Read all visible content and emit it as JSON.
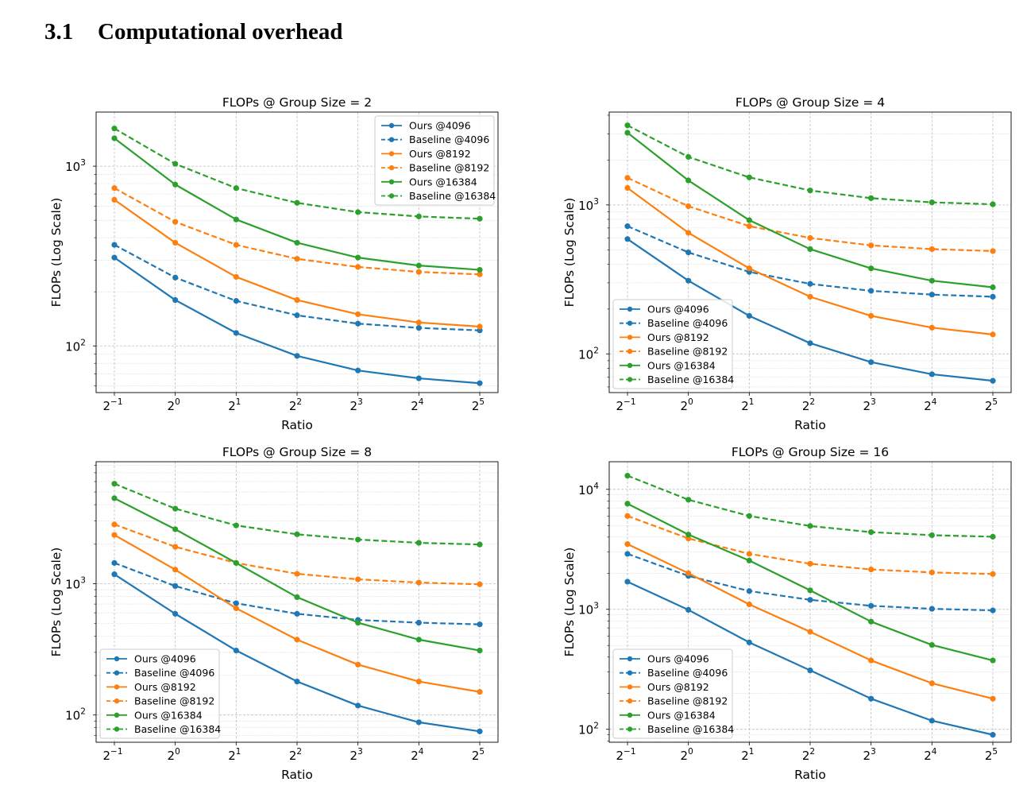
{
  "section": {
    "number": "3.1",
    "title": "Computational overhead"
  },
  "colors": {
    "blue": "#1f77b4",
    "orange": "#ff7f0e",
    "green": "#2ca02c",
    "grid": "#b0b0b0"
  },
  "chart_data": [
    {
      "type": "line",
      "title": "FLOPs @ Group Size = 2",
      "xlabel": "Ratio",
      "ylabel": "FLOPs (Log Scale)",
      "x": [
        0.5,
        1,
        2,
        4,
        8,
        16,
        32
      ],
      "xtick_labels": [
        [
          "2",
          "−1"
        ],
        [
          "2",
          "0"
        ],
        [
          "2",
          "1"
        ],
        [
          "2",
          "2"
        ],
        [
          "2",
          "3"
        ],
        [
          "2",
          "4"
        ],
        [
          "2",
          "5"
        ]
      ],
      "xscale": "log2",
      "yscale": "log",
      "ylim": [
        55,
        2000
      ],
      "ytick_labels": [
        [
          "10",
          "2",
          100
        ],
        [
          "10",
          "3",
          1000
        ]
      ],
      "grid": true,
      "legend_position": "upper right",
      "series": [
        {
          "name": "Ours @4096",
          "color": "blue",
          "style": "solid",
          "values": [
            310,
            180,
            118,
            88,
            73,
            66,
            62
          ]
        },
        {
          "name": "Baseline @4096",
          "color": "blue",
          "style": "dashed",
          "values": [
            365,
            240,
            178,
            148,
            133,
            126,
            122
          ]
        },
        {
          "name": "Ours @8192",
          "color": "orange",
          "style": "solid",
          "values": [
            650,
            375,
            242,
            180,
            150,
            135,
            128
          ]
        },
        {
          "name": "Baseline @8192",
          "color": "orange",
          "style": "dashed",
          "values": [
            755,
            490,
            365,
            305,
            275,
            258,
            250
          ]
        },
        {
          "name": "Ours @16384",
          "color": "green",
          "style": "solid",
          "values": [
            1430,
            790,
            505,
            375,
            310,
            280,
            265
          ]
        },
        {
          "name": "Baseline @16384",
          "color": "green",
          "style": "dashed",
          "values": [
            1620,
            1030,
            755,
            625,
            555,
            525,
            510
          ]
        }
      ]
    },
    {
      "type": "line",
      "title": "FLOPs @ Group Size = 4",
      "xlabel": "Ratio",
      "ylabel": "FLOPs (Log Scale)",
      "x": [
        0.5,
        1,
        2,
        4,
        8,
        16,
        32
      ],
      "xtick_labels": [
        [
          "2",
          "−1"
        ],
        [
          "2",
          "0"
        ],
        [
          "2",
          "1"
        ],
        [
          "2",
          "2"
        ],
        [
          "2",
          "3"
        ],
        [
          "2",
          "4"
        ],
        [
          "2",
          "5"
        ]
      ],
      "xscale": "log2",
      "yscale": "log",
      "ylim": [
        55,
        4200
      ],
      "ytick_labels": [
        [
          "10",
          "2",
          100
        ],
        [
          "10",
          "3",
          1000
        ]
      ],
      "grid": true,
      "legend_position": "lower left",
      "series": [
        {
          "name": "Ours @4096",
          "color": "blue",
          "style": "solid",
          "values": [
            590,
            310,
            180,
            118,
            88,
            73,
            66
          ]
        },
        {
          "name": "Baseline @4096",
          "color": "blue",
          "style": "dashed",
          "values": [
            720,
            480,
            355,
            295,
            265,
            250,
            242
          ]
        },
        {
          "name": "Ours @8192",
          "color": "orange",
          "style": "solid",
          "values": [
            1300,
            650,
            375,
            242,
            180,
            150,
            135
          ]
        },
        {
          "name": "Baseline @8192",
          "color": "orange",
          "style": "dashed",
          "values": [
            1520,
            980,
            720,
            600,
            535,
            505,
            490
          ]
        },
        {
          "name": "Ours @16384",
          "color": "green",
          "style": "solid",
          "values": [
            3050,
            1460,
            790,
            505,
            375,
            310,
            280
          ]
        },
        {
          "name": "Baseline @16384",
          "color": "green",
          "style": "dashed",
          "values": [
            3420,
            2100,
            1530,
            1250,
            1110,
            1040,
            1010
          ]
        }
      ]
    },
    {
      "type": "line",
      "title": "FLOPs @ Group Size = 8",
      "xlabel": "Ratio",
      "ylabel": "FLOPs (Log Scale)",
      "x": [
        0.5,
        1,
        2,
        4,
        8,
        16,
        32
      ],
      "xtick_labels": [
        [
          "2",
          "−1"
        ],
        [
          "2",
          "0"
        ],
        [
          "2",
          "1"
        ],
        [
          "2",
          "2"
        ],
        [
          "2",
          "3"
        ],
        [
          "2",
          "4"
        ],
        [
          "2",
          "5"
        ]
      ],
      "xscale": "log2",
      "yscale": "log",
      "ylim": [
        62,
        8500
      ],
      "ytick_labels": [
        [
          "10",
          "2",
          100
        ],
        [
          "10",
          "3",
          1000
        ]
      ],
      "grid": true,
      "legend_position": "lower left",
      "series": [
        {
          "name": "Ours @4096",
          "color": "blue",
          "style": "solid",
          "values": [
            1180,
            590,
            310,
            180,
            118,
            88,
            75
          ]
        },
        {
          "name": "Baseline @4096",
          "color": "blue",
          "style": "dashed",
          "values": [
            1440,
            960,
            710,
            590,
            530,
            505,
            490
          ]
        },
        {
          "name": "Ours @8192",
          "color": "orange",
          "style": "solid",
          "values": [
            2350,
            1280,
            650,
            375,
            242,
            180,
            150
          ]
        },
        {
          "name": "Baseline @8192",
          "color": "orange",
          "style": "dashed",
          "values": [
            2830,
            1910,
            1440,
            1190,
            1080,
            1020,
            990
          ]
        },
        {
          "name": "Ours @16384",
          "color": "green",
          "style": "solid",
          "values": [
            4480,
            2600,
            1440,
            790,
            505,
            375,
            310
          ]
        },
        {
          "name": "Baseline @16384",
          "color": "green",
          "style": "dashed",
          "values": [
            5780,
            3730,
            2780,
            2380,
            2170,
            2050,
            1990
          ]
        }
      ]
    },
    {
      "type": "line",
      "title": "FLOPs @ Group Size = 16",
      "xlabel": "Ratio",
      "ylabel": "FLOPs (Log Scale)",
      "x": [
        0.5,
        1,
        2,
        4,
        8,
        16,
        32
      ],
      "xtick_labels": [
        [
          "2",
          "−1"
        ],
        [
          "2",
          "0"
        ],
        [
          "2",
          "1"
        ],
        [
          "2",
          "2"
        ],
        [
          "2",
          "3"
        ],
        [
          "2",
          "4"
        ],
        [
          "2",
          "5"
        ]
      ],
      "xscale": "log2",
      "yscale": "log",
      "ylim": [
        78,
        17000
      ],
      "ytick_labels": [
        [
          "10",
          "2",
          100
        ],
        [
          "10",
          "3",
          1000
        ],
        [
          "10",
          "4",
          10000
        ]
      ],
      "grid": true,
      "legend_position": "lower left",
      "series": [
        {
          "name": "Ours @4096",
          "color": "blue",
          "style": "solid",
          "values": [
            1700,
            990,
            530,
            310,
            180,
            118,
            90
          ]
        },
        {
          "name": "Baseline @4096",
          "color": "blue",
          "style": "dashed",
          "values": [
            2900,
            1900,
            1420,
            1200,
            1070,
            1010,
            980
          ]
        },
        {
          "name": "Ours @8192",
          "color": "orange",
          "style": "solid",
          "values": [
            3500,
            2000,
            1100,
            650,
            375,
            242,
            180
          ]
        },
        {
          "name": "Baseline @8192",
          "color": "orange",
          "style": "dashed",
          "values": [
            6000,
            3900,
            2900,
            2400,
            2150,
            2030,
            1970
          ]
        },
        {
          "name": "Ours @16384",
          "color": "green",
          "style": "solid",
          "values": [
            7600,
            4200,
            2550,
            1440,
            790,
            505,
            375
          ]
        },
        {
          "name": "Baseline @16384",
          "color": "green",
          "style": "dashed",
          "values": [
            13000,
            8200,
            6000,
            4950,
            4400,
            4150,
            4030
          ]
        }
      ]
    }
  ]
}
